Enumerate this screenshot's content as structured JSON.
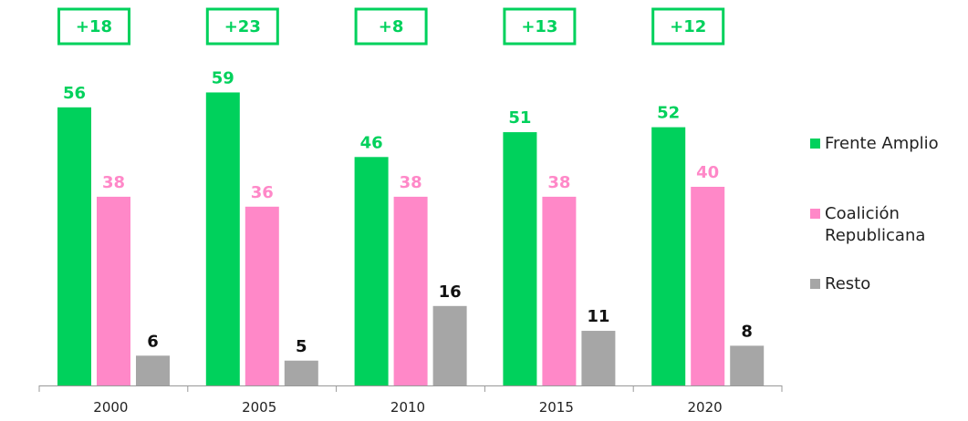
{
  "chart_data": {
    "type": "bar",
    "categories": [
      "2000",
      "2005",
      "2010",
      "2015",
      "2020"
    ],
    "series": [
      {
        "name": "Frente Amplio",
        "values": [
          56,
          59,
          46,
          51,
          52
        ],
        "color": "#00D15C",
        "label_color": "#00D15C"
      },
      {
        "name": "Coalición\nRepublicana",
        "values": [
          38,
          36,
          38,
          38,
          40
        ],
        "color": "#FF88C8",
        "label_color": "#FF88C8"
      },
      {
        "name": "Resto",
        "values": [
          6,
          5,
          16,
          11,
          8
        ],
        "color": "#A6A6A6",
        "label_color": "#111111"
      }
    ],
    "differences": [
      "+18",
      "+23",
      "+8",
      "+13",
      "+12"
    ],
    "difference_color": "#00D15C",
    "ylim": [
      0,
      65
    ],
    "grid": false,
    "legend_position": "right"
  }
}
